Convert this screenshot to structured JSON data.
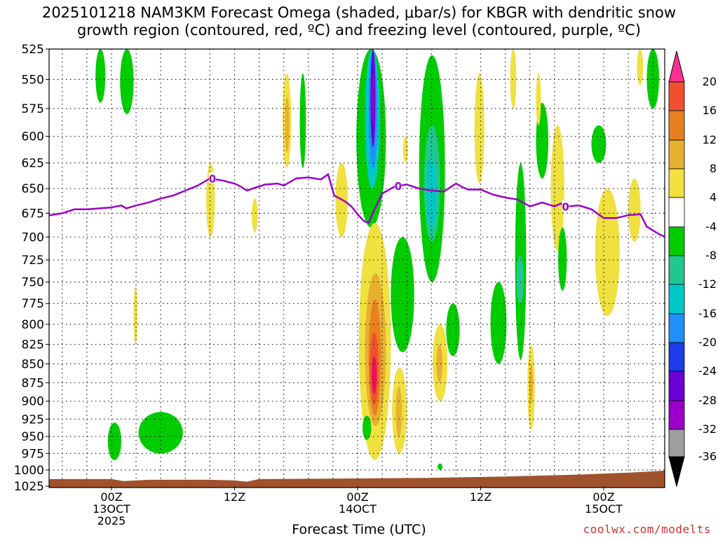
{
  "title_line1": "2025101218 NAM3KM Forecast Omega (shaded, μbar/s) for KBGR with dendritic snow",
  "title_line2": "growth region (contoured, red, ºC) and freezing level (contoured, purple, ºC)",
  "xaxis_title": "Forecast Time (UTC)",
  "credit": "coolwx.com/modelts",
  "chart_data": {
    "type": "heatmap",
    "variable": "Omega (μbar/s)",
    "x_range_hours": [
      -6,
      44
    ],
    "y_levels_hPa": [
      "525",
      "550",
      "575",
      "600",
      "625",
      "650",
      "675",
      "700",
      "725",
      "750",
      "775",
      "800",
      "825",
      "850",
      "875",
      "900",
      "925",
      "950",
      "975",
      "1000",
      "1025"
    ],
    "x_ticks": [
      {
        "hour": 0,
        "lines": [
          "00Z",
          "13OCT",
          "2025"
        ]
      },
      {
        "hour": 10,
        "lines": [
          "12Z"
        ]
      },
      {
        "hour": 20,
        "lines": [
          "00Z",
          "14OCT"
        ]
      },
      {
        "hour": 30,
        "lines": [
          "12Z"
        ]
      },
      {
        "hour": 40,
        "lines": [
          "00Z",
          "15OCT"
        ]
      }
    ],
    "colorbar": {
      "labels": [
        "20",
        "16",
        "12",
        "8",
        "4",
        "-4",
        "-8",
        "-12",
        "-16",
        "-20",
        "-24",
        "-28",
        "-32",
        "-36"
      ],
      "colors": [
        "#ffffff",
        "#d8d8d8",
        "#9e9e9e",
        "#9c00c8",
        "#6a00d6",
        "#1b3ce6",
        "#1e90ff",
        "#00c8c8",
        "#20c890",
        "#00cc00",
        "#ffffff",
        "#f0e040",
        "#e8b030",
        "#e88020",
        "#f05030",
        "#e81060",
        "#ff3090"
      ]
    },
    "freezing_level": {
      "label": "0",
      "points": [
        [
          -6,
          675
        ],
        [
          -5,
          677
        ],
        [
          -4,
          675
        ],
        [
          -3,
          671
        ],
        [
          -2,
          671
        ],
        [
          -1,
          670
        ],
        [
          0,
          669
        ],
        [
          0.8,
          667
        ],
        [
          1.2,
          670
        ],
        [
          2,
          667
        ],
        [
          3,
          664
        ],
        [
          4,
          660
        ],
        [
          5,
          657
        ],
        [
          6,
          652
        ],
        [
          7,
          647
        ],
        [
          8,
          640
        ],
        [
          9,
          642
        ],
        [
          10,
          645
        ],
        [
          10.5,
          648
        ],
        [
          11,
          652
        ],
        [
          11.7,
          649
        ],
        [
          12.5,
          646
        ],
        [
          13.5,
          645
        ],
        [
          14,
          647
        ],
        [
          15,
          640
        ],
        [
          16,
          639
        ],
        [
          17,
          641
        ],
        [
          17.6,
          636
        ],
        [
          18.1,
          657
        ],
        [
          19,
          663
        ],
        [
          19.5,
          668
        ],
        [
          20,
          676
        ],
        [
          20.5,
          683
        ],
        [
          20.9,
          685
        ],
        [
          21.3,
          673
        ],
        [
          22,
          655
        ],
        [
          23,
          648
        ],
        [
          24,
          646
        ],
        [
          25,
          650
        ],
        [
          26,
          652
        ],
        [
          27,
          653
        ],
        [
          28,
          645
        ],
        [
          28.6,
          649
        ],
        [
          29,
          651
        ],
        [
          30,
          651
        ],
        [
          31,
          656
        ],
        [
          32,
          659
        ],
        [
          33,
          661
        ],
        [
          34,
          668
        ],
        [
          35,
          664
        ],
        [
          36,
          668
        ],
        [
          36.5,
          665
        ],
        [
          37,
          668
        ],
        [
          38,
          667
        ],
        [
          39,
          671
        ],
        [
          40,
          680
        ],
        [
          41,
          680
        ],
        [
          42,
          677
        ],
        [
          43,
          676
        ],
        [
          43.5,
          689
        ],
        [
          44,
          693
        ],
        [
          44.5,
          697
        ],
        [
          45,
          700
        ],
        [
          45.5,
          705
        ]
      ]
    },
    "omega_cells": [
      {
        "x": [
          13.9,
          14.6
        ],
        "p": [
          545,
          630
        ],
        "c": "#f0e040"
      },
      {
        "x": [
          14.1,
          14.45
        ],
        "p": [
          565,
          615
        ],
        "c": "#e8b030"
      },
      {
        "x": [
          19.9,
          22.3
        ],
        "p": [
          525,
          690
        ],
        "c": "#00cc00"
      },
      {
        "x": [
          20.6,
          21.8
        ],
        "p": [
          525,
          650
        ],
        "c": "#00c8c8"
      },
      {
        "x": [
          20.9,
          21.6
        ],
        "p": [
          525,
          630
        ],
        "c": "#1e90ff"
      },
      {
        "x": [
          21.05,
          21.45
        ],
        "p": [
          525,
          610
        ],
        "c": "#6a00d6"
      },
      {
        "x": [
          21.15,
          21.35
        ],
        "p": [
          545,
          590
        ],
        "c": "#9c00c8"
      },
      {
        "x": [
          25,
          27.1
        ],
        "p": [
          530,
          750
        ],
        "c": "#00cc00"
      },
      {
        "x": [
          25.4,
          26.7
        ],
        "p": [
          590,
          705
        ],
        "c": "#20c890"
      },
      {
        "x": [
          25.6,
          26.4
        ],
        "p": [
          620,
          690
        ],
        "c": "#00c8c8"
      },
      {
        "x": [
          20.1,
          22.7
        ],
        "p": [
          685,
          985
        ],
        "c": "#f0e040"
      },
      {
        "x": [
          20.6,
          22.3
        ],
        "p": [
          740,
          935
        ],
        "c": "#e8b030"
      },
      {
        "x": [
          20.9,
          21.9
        ],
        "p": [
          770,
          920
        ],
        "c": "#e88020"
      },
      {
        "x": [
          21.0,
          21.7
        ],
        "p": [
          810,
          905
        ],
        "c": "#f05030"
      },
      {
        "x": [
          21.15,
          21.55
        ],
        "p": [
          840,
          890
        ],
        "c": "#e81060"
      },
      {
        "x": [
          22.8,
          24
        ],
        "p": [
          855,
          975
        ],
        "c": "#f0e040"
      },
      {
        "x": [
          23.1,
          23.6
        ],
        "p": [
          880,
          950
        ],
        "c": "#e8b030"
      },
      {
        "x": [
          22.7,
          24.6
        ],
        "p": [
          700,
          835
        ],
        "c": "#00cc00"
      },
      {
        "x": [
          26.1,
          27.3
        ],
        "p": [
          800,
          900
        ],
        "c": "#f0e040"
      },
      {
        "x": [
          26.4,
          26.9
        ],
        "p": [
          825,
          875
        ],
        "c": "#e8b030"
      },
      {
        "x": [
          30.8,
          32.1
        ],
        "p": [
          750,
          850
        ],
        "c": "#00cc00"
      },
      {
        "x": [
          32.8,
          33.7
        ],
        "p": [
          625,
          845
        ],
        "c": "#00cc00"
      },
      {
        "x": [
          32.9,
          33.5
        ],
        "p": [
          720,
          775
        ],
        "c": "#20c890"
      },
      {
        "x": [
          34.5,
          35.5
        ],
        "p": [
          570,
          640
        ],
        "c": "#00cc00"
      },
      {
        "x": [
          35.7,
          36.8
        ],
        "p": [
          590,
          715
        ],
        "c": "#f0e040"
      },
      {
        "x": [
          36.3,
          37
        ],
        "p": [
          690,
          760
        ],
        "c": "#00cc00"
      },
      {
        "x": [
          39,
          40.2
        ],
        "p": [
          590,
          625
        ],
        "c": "#00cc00"
      },
      {
        "x": [
          39.3,
          41.3
        ],
        "p": [
          650,
          790
        ],
        "c": "#f0e040"
      },
      {
        "x": [
          42,
          43
        ],
        "p": [
          640,
          705
        ],
        "c": "#f0e040"
      },
      {
        "x": [
          33.8,
          34.4
        ],
        "p": [
          825,
          940
        ],
        "c": "#f0e040"
      },
      {
        "x": [
          33.95,
          34.25
        ],
        "p": [
          850,
          905
        ],
        "c": "#e8b030"
      },
      {
        "x": [
          27.2,
          28.3
        ],
        "p": [
          775,
          840
        ],
        "c": "#00cc00"
      },
      {
        "x": [
          34.5,
          34.9
        ],
        "p": [
          545,
          590
        ],
        "c": "#f0e040"
      },
      {
        "x": [
          43.5,
          44.5
        ],
        "p": [
          525,
          575
        ],
        "c": "#00cc00"
      },
      {
        "x": [
          42.7,
          43.2
        ],
        "p": [
          525,
          555
        ],
        "c": "#f0e040"
      },
      {
        "x": [
          -1.3,
          -0.5
        ],
        "p": [
          525,
          570
        ],
        "c": "#00cc00"
      },
      {
        "x": [
          0.7,
          1.8
        ],
        "p": [
          525,
          580
        ],
        "c": "#00cc00"
      },
      {
        "x": [
          7.7,
          8.4
        ],
        "p": [
          625,
          700
        ],
        "c": "#f0e040"
      },
      {
        "x": [
          1.8,
          2.1
        ],
        "p": [
          755,
          825
        ],
        "c": "#f0e040"
      },
      {
        "x": [
          11.4,
          11.9
        ],
        "p": [
          660,
          695
        ],
        "c": "#f0e040"
      },
      {
        "x": [
          15.3,
          15.8
        ],
        "p": [
          545,
          630
        ],
        "c": "#00cc00"
      },
      {
        "x": [
          18.2,
          19.2
        ],
        "p": [
          625,
          700
        ],
        "c": "#f0e040"
      },
      {
        "x": [
          23.7,
          24.1
        ],
        "p": [
          600,
          625
        ],
        "c": "#f0e040"
      },
      {
        "x": [
          29.5,
          30.3
        ],
        "p": [
          545,
          645
        ],
        "c": "#f0e040"
      },
      {
        "x": [
          32.4,
          32.9
        ],
        "p": [
          525,
          575
        ],
        "c": "#f0e040"
      },
      {
        "x": [
          -0.3,
          0.8
        ],
        "p": [
          930,
          985
        ],
        "c": "#00cc00"
      },
      {
        "x": [
          2.2,
          5.8
        ],
        "p": [
          915,
          975
        ],
        "c": "#00cc00"
      },
      {
        "x": [
          20.4,
          21.1
        ],
        "p": [
          920,
          955
        ],
        "c": "#00cc00"
      },
      {
        "x": [
          26.5,
          26.9
        ],
        "p": [
          990,
          1000
        ],
        "c": "#00cc00"
      }
    ]
  }
}
